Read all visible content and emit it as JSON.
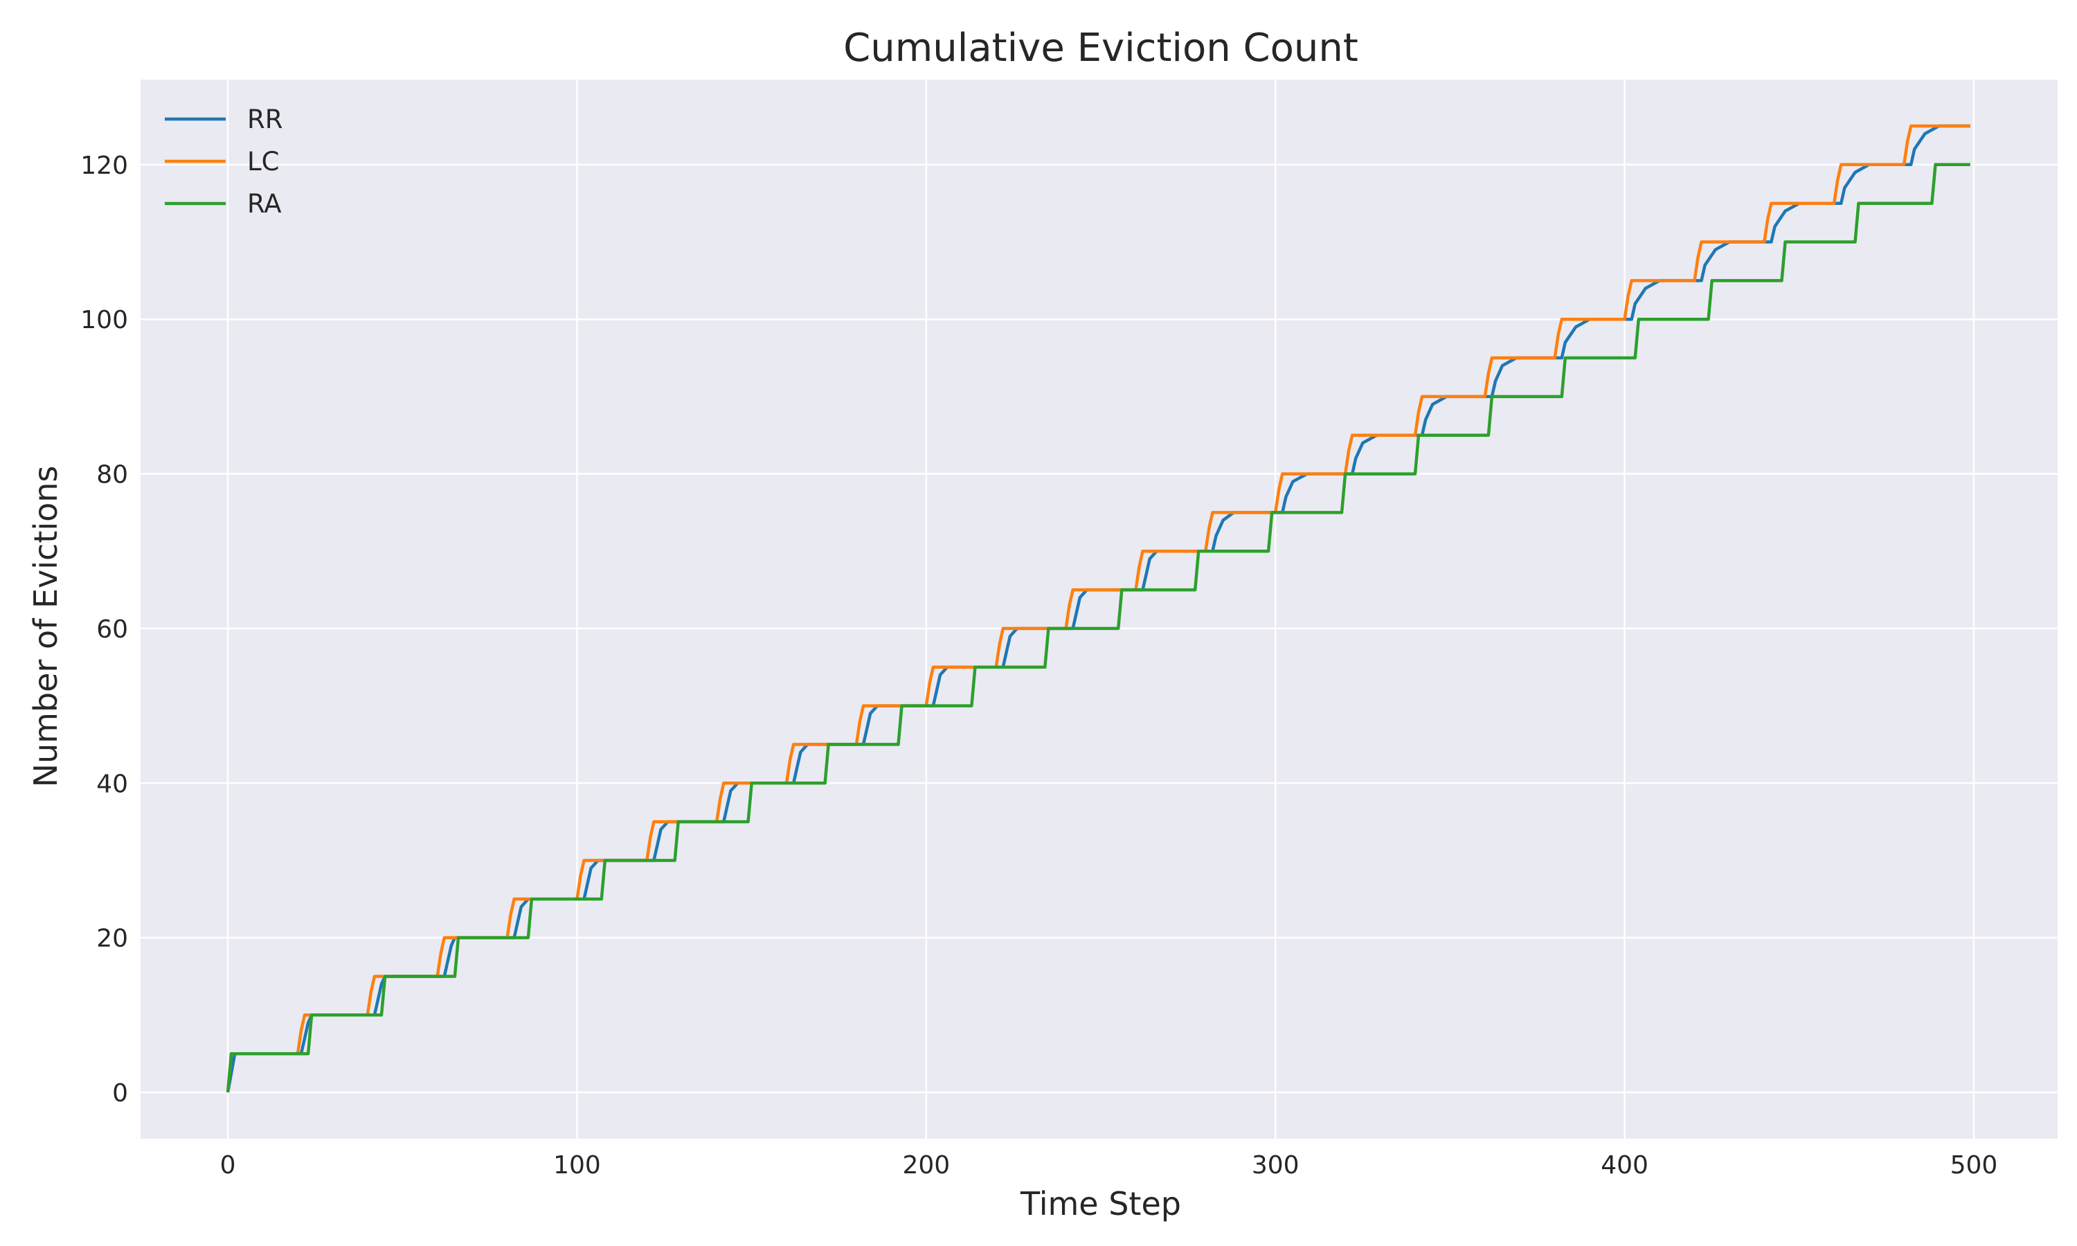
{
  "chart_data": {
    "type": "line",
    "title": "Cumulative Eviction Count",
    "xlabel": "Time Step",
    "ylabel": "Number of Evictions",
    "xlim": [
      -25,
      524
    ],
    "ylim": [
      -6,
      131
    ],
    "x_ticks": [
      0,
      100,
      200,
      300,
      400,
      500
    ],
    "y_ticks": [
      0,
      20,
      40,
      60,
      80,
      100,
      120
    ],
    "grid": true,
    "legend_position": "top-left",
    "series": [
      {
        "name": "RR",
        "color": "#1f77b4",
        "x": [
          0,
          2,
          21,
          22,
          23,
          24,
          42,
          43,
          44,
          45,
          62,
          63,
          64,
          65,
          82,
          83,
          84,
          86,
          102,
          103,
          104,
          106,
          122,
          123,
          124,
          126,
          142,
          143,
          144,
          146,
          162,
          163,
          164,
          166,
          182,
          183,
          184,
          186,
          202,
          203,
          204,
          206,
          222,
          223,
          224,
          226,
          242,
          243,
          244,
          246,
          262,
          263,
          264,
          266,
          282,
          283,
          285,
          288,
          302,
          303,
          305,
          309,
          322,
          323,
          325,
          329,
          342,
          343,
          345,
          349,
          362,
          363,
          365,
          369,
          382,
          383,
          386,
          390,
          402,
          403,
          406,
          410,
          422,
          423,
          426,
          430,
          442,
          443,
          446,
          450,
          462,
          463,
          466,
          470,
          482,
          483,
          486,
          490,
          499
        ],
        "y": [
          0,
          5,
          5,
          7,
          9,
          10,
          10,
          12,
          14,
          15,
          15,
          17,
          19,
          20,
          20,
          22,
          24,
          25,
          25,
          27,
          29,
          30,
          30,
          32,
          34,
          35,
          35,
          37,
          39,
          40,
          40,
          42,
          44,
          45,
          45,
          47,
          49,
          50,
          50,
          52,
          54,
          55,
          55,
          57,
          59,
          60,
          60,
          62,
          64,
          65,
          65,
          67,
          69,
          70,
          70,
          72,
          74,
          75,
          75,
          77,
          79,
          80,
          80,
          82,
          84,
          85,
          85,
          87,
          89,
          90,
          90,
          92,
          94,
          95,
          95,
          97,
          99,
          100,
          100,
          102,
          104,
          105,
          105,
          107,
          109,
          110,
          110,
          112,
          114,
          115,
          115,
          117,
          119,
          120,
          120,
          122,
          124,
          125,
          125
        ]
      },
      {
        "name": "LC",
        "color": "#ff7f0e",
        "x": [
          0,
          1,
          20,
          21,
          22,
          40,
          41,
          42,
          60,
          61,
          62,
          80,
          81,
          82,
          100,
          101,
          102,
          120,
          121,
          122,
          140,
          141,
          142,
          160,
          161,
          162,
          180,
          181,
          182,
          200,
          201,
          202,
          220,
          221,
          222,
          240,
          241,
          242,
          260,
          261,
          262,
          280,
          281,
          282,
          300,
          301,
          302,
          320,
          321,
          322,
          340,
          341,
          342,
          360,
          361,
          362,
          380,
          381,
          382,
          400,
          401,
          402,
          420,
          421,
          422,
          440,
          441,
          442,
          460,
          461,
          462,
          480,
          481,
          482,
          499
        ],
        "y": [
          0,
          5,
          5,
          8,
          10,
          10,
          13,
          15,
          15,
          18,
          20,
          20,
          23,
          25,
          25,
          28,
          30,
          30,
          33,
          35,
          35,
          38,
          40,
          40,
          43,
          45,
          45,
          48,
          50,
          50,
          53,
          55,
          55,
          58,
          60,
          60,
          63,
          65,
          65,
          68,
          70,
          70,
          73,
          75,
          75,
          78,
          80,
          80,
          83,
          85,
          85,
          88,
          90,
          90,
          93,
          95,
          95,
          98,
          100,
          100,
          103,
          105,
          105,
          108,
          110,
          110,
          113,
          115,
          115,
          118,
          120,
          120,
          123,
          125,
          125
        ]
      },
      {
        "name": "RA",
        "color": "#2ca02c",
        "x": [
          0,
          1,
          23,
          24,
          44,
          45,
          65,
          66,
          86,
          87,
          107,
          108,
          128,
          129,
          149,
          150,
          171,
          172,
          192,
          193,
          213,
          214,
          234,
          235,
          255,
          256,
          277,
          278,
          298,
          299,
          319,
          320,
          340,
          341,
          361,
          362,
          382,
          383,
          403,
          404,
          424,
          425,
          445,
          446,
          466,
          467,
          488,
          489,
          499
        ],
        "y": [
          0,
          5,
          5,
          10,
          10,
          15,
          15,
          20,
          20,
          25,
          25,
          30,
          30,
          35,
          35,
          40,
          40,
          45,
          45,
          50,
          50,
          55,
          55,
          60,
          60,
          65,
          65,
          70,
          70,
          75,
          75,
          80,
          80,
          85,
          85,
          90,
          90,
          95,
          95,
          100,
          100,
          105,
          105,
          110,
          110,
          115,
          115,
          120,
          120
        ]
      }
    ]
  }
}
